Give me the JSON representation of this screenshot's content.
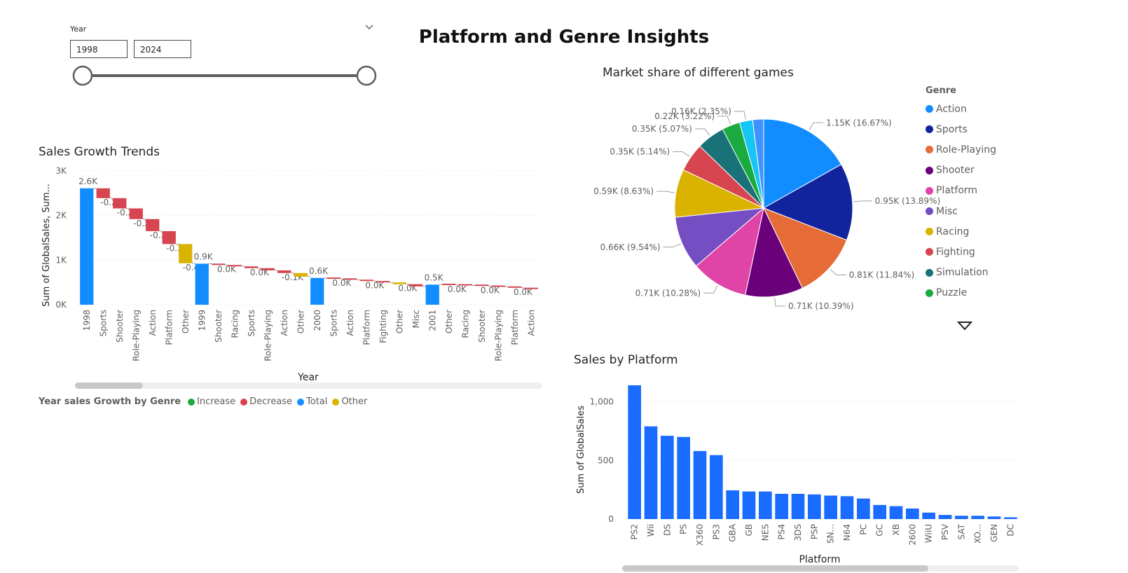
{
  "page": {
    "title": "Platform and Genre Insights"
  },
  "slicer": {
    "label": "Year",
    "from": "1998",
    "to": "2024"
  },
  "waterfall": {
    "title": "Sales Growth Trends",
    "legend_title": "Year sales Growth by Genre",
    "legend": [
      {
        "label": "Increase",
        "color": "#1aab40"
      },
      {
        "label": "Decrease",
        "color": "#d64550"
      },
      {
        "label": "Total",
        "color": "#118dff"
      },
      {
        "label": "Other",
        "color": "#d9b300"
      }
    ]
  },
  "pie": {
    "title": "Market share of different games",
    "legend_title": "Genre"
  },
  "bar": {
    "title": "Sales by Platform"
  },
  "chart_data": [
    {
      "type": "waterfall",
      "title": "Sales Growth Trends",
      "xlabel": "Year",
      "ylabel": "Sum of GlobalSales, Sum...",
      "ylim": [
        0,
        3000
      ],
      "yticks": [
        0,
        1000,
        2000,
        3000
      ],
      "ytick_labels": [
        "0K",
        "1K",
        "2K",
        "3K"
      ],
      "categories": [
        "1998",
        "Sports",
        "Shooter",
        "Role-Playing",
        "Action",
        "Platform",
        "Other",
        "1999",
        "Shooter",
        "Racing",
        "Sports",
        "Role-Playing",
        "Action",
        "Other",
        "2000",
        "Sports",
        "Action",
        "Platform",
        "Fighting",
        "Other",
        "Misc",
        "2001",
        "Other",
        "Racing",
        "Shooter",
        "Role-Playing",
        "Platform",
        "Action"
      ],
      "kinds": [
        "total",
        "decrease",
        "decrease",
        "decrease",
        "decrease",
        "decrease",
        "other",
        "total",
        "decrease",
        "decrease",
        "decrease",
        "decrease",
        "decrease",
        "other",
        "total",
        "decrease",
        "decrease",
        "decrease",
        "decrease",
        "other",
        "decrease",
        "total",
        "decrease",
        "decrease",
        "decrease",
        "decrease",
        "decrease",
        "decrease"
      ],
      "values": [
        2610,
        -220,
        -230,
        -240,
        -270,
        -290,
        -430,
        920,
        -30,
        -30,
        -40,
        -50,
        -60,
        -80,
        600,
        -20,
        -20,
        -30,
        -30,
        -40,
        -50,
        450,
        -10,
        -10,
        -10,
        -20,
        -20,
        -30
      ],
      "data_labels": [
        "2.6K",
        "-0.2K",
        "-0.2K",
        "-0.2K",
        "-0.3K",
        "-0.3K",
        "-0.4K",
        "0.9K",
        "0.0K",
        "",
        "0.0K",
        "",
        "-0.1K",
        "",
        "0.6K",
        "0.0K",
        "",
        "0.0K",
        "",
        "0.0K",
        "",
        "0.5K",
        "0.0K",
        "",
        "0.0K",
        "",
        "0.0K",
        ""
      ]
    },
    {
      "type": "pie",
      "title": "Market share of different games",
      "legend_title": "Genre",
      "slices": [
        {
          "label": "Action",
          "value": 1.15,
          "percent": 16.67,
          "color": "#118dff",
          "data_label": "1.15K (16.67%)"
        },
        {
          "label": "Sports",
          "value": 0.95,
          "percent": 13.89,
          "color": "#12239e",
          "data_label": "0.95K (13.89%)"
        },
        {
          "label": "Role-Playing",
          "value": 0.81,
          "percent": 11.84,
          "color": "#e66c37",
          "data_label": "0.81K (11.84%)"
        },
        {
          "label": "Shooter",
          "value": 0.71,
          "percent": 10.39,
          "color": "#6b007b",
          "data_label": "0.71K (10.39%)"
        },
        {
          "label": "Platform",
          "value": 0.71,
          "percent": 10.28,
          "color": "#e044a7",
          "data_label": "0.71K (10.28%)"
        },
        {
          "label": "Misc",
          "value": 0.66,
          "percent": 9.54,
          "color": "#744ec2",
          "data_label": "0.66K (9.54%)"
        },
        {
          "label": "Racing",
          "value": 0.59,
          "percent": 8.63,
          "color": "#d9b300",
          "data_label": "0.59K (8.63%)"
        },
        {
          "label": "Fighting",
          "value": 0.35,
          "percent": 5.14,
          "color": "#d64550",
          "data_label": "0.35K (5.14%)"
        },
        {
          "label": "Simulation",
          "value": 0.35,
          "percent": 5.07,
          "color": "#197278",
          "data_label": "0.35K (5.07%)"
        },
        {
          "label": "Puzzle",
          "value": 0.22,
          "percent": 3.22,
          "color": "#1aab40",
          "data_label": "0.22K (3.22%)"
        },
        {
          "label": "",
          "value": 0.16,
          "percent": 2.35,
          "color": "#15c6f4",
          "data_label": "0.16K (2.35%)"
        },
        {
          "label": "",
          "value": 0.14,
          "percent": 1.98,
          "color": "#4092ff",
          "data_label": ""
        }
      ]
    },
    {
      "type": "bar",
      "title": "Sales by Platform",
      "xlabel": "Platform",
      "ylabel": "Sum of GlobalSales",
      "ylim": [
        0,
        1200
      ],
      "yticks": [
        0,
        500,
        1000
      ],
      "ytick_labels": [
        "0",
        "500",
        "1,000"
      ],
      "categories": [
        "PS2",
        "Wii",
        "DS",
        "PS",
        "X360",
        "PS3",
        "GBA",
        "GB",
        "NES",
        "PS4",
        "3DS",
        "PSP",
        "SN...",
        "N64",
        "PC",
        "GC",
        "XB",
        "2600",
        "WiiU",
        "PSV",
        "SAT",
        "XO...",
        "GEN",
        "DC"
      ],
      "values": [
        1140,
        790,
        710,
        700,
        580,
        545,
        245,
        235,
        235,
        215,
        215,
        210,
        200,
        195,
        175,
        120,
        110,
        90,
        55,
        35,
        28,
        28,
        22,
        15
      ]
    }
  ]
}
